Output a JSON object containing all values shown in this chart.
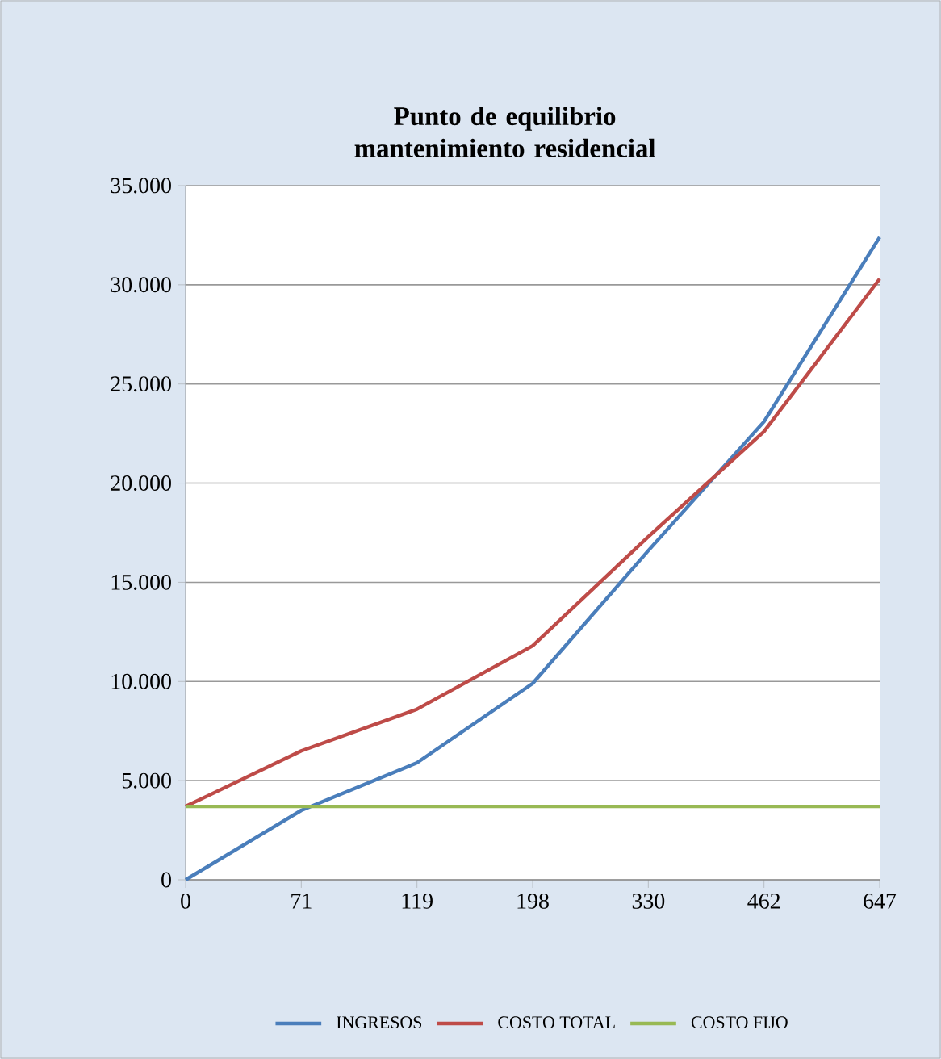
{
  "chart_data": {
    "type": "line",
    "title": "Punto de equilibrio mantenimiento residencial",
    "categories": [
      "0",
      "71",
      "119",
      "198",
      "330",
      "462",
      "647"
    ],
    "series": [
      {
        "name": "INGRESOS",
        "color": "#4a7ebb",
        "values": [
          0,
          3500,
          5900,
          9900,
          16600,
          23100,
          32400
        ]
      },
      {
        "name": "COSTO TOTAL",
        "color": "#be4b48",
        "values": [
          3700,
          6500,
          8600,
          11800,
          17300,
          22600,
          30300
        ]
      },
      {
        "name": "COSTO FIJO",
        "color": "#98b954",
        "values": [
          3700,
          3700,
          3700,
          3700,
          3700,
          3700,
          3700
        ]
      }
    ],
    "ylim": [
      0,
      35000
    ],
    "yticks": [
      0,
      {
        "value": 5000,
        "label": "5.000"
      },
      {
        "value": 10000,
        "label": "10.000"
      },
      {
        "value": 15000,
        "label": "15.000"
      },
      {
        "value": 20000,
        "label": "20.000"
      },
      {
        "value": 25000,
        "label": "25.000"
      },
      {
        "value": 30000,
        "label": "30.000"
      },
      {
        "value": 35000,
        "label": "35.000"
      }
    ],
    "grid": "y",
    "legend": "bottom"
  }
}
